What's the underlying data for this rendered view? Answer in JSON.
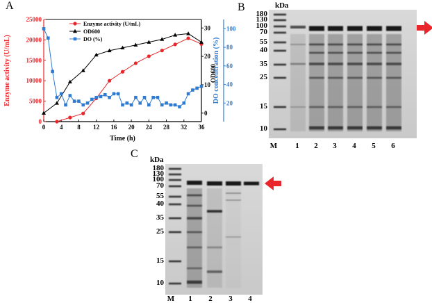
{
  "panels": {
    "a": {
      "letter": "A"
    },
    "b": {
      "letter": "B"
    },
    "c": {
      "letter": "C"
    }
  },
  "chart_data": {
    "type": "line",
    "xlabel": "Time (h)",
    "ylabel_left": "Enzyme activity (U/mL)",
    "ylabel_mid": "OD600",
    "ylabel_right": "DO concentration (%)",
    "xlim": [
      0,
      36
    ],
    "x_ticks": [
      0,
      4,
      8,
      12,
      16,
      20,
      24,
      28,
      32,
      36
    ],
    "ylim_left": [
      0,
      25000
    ],
    "left_ticks": [
      0,
      5000,
      10000,
      15000,
      20000,
      25000
    ],
    "ylim_mid": [
      -3,
      33
    ],
    "mid_ticks": [
      0,
      10,
      20,
      30
    ],
    "ylim_right": [
      0,
      110
    ],
    "right_ticks": [
      20,
      40,
      60,
      80,
      100
    ],
    "legend_position": "top-left",
    "colors": {
      "enzyme": "#e8262c",
      "od": "#000000",
      "do": "#2f7bd1"
    },
    "series": [
      {
        "name": "Enzyme activity (U/mL)",
        "axis": "left",
        "marker": "circle",
        "x": [
          3,
          6,
          9,
          12,
          15,
          18,
          21,
          24,
          27,
          30,
          33,
          36
        ],
        "y": [
          0,
          1000,
          2000,
          5700,
          10000,
          12200,
          14300,
          16000,
          17400,
          18900,
          20400,
          19000
        ]
      },
      {
        "name": "OD600",
        "axis": "mid",
        "marker": "triangle",
        "x": [
          0,
          3,
          6,
          9,
          12,
          15,
          18,
          21,
          24,
          27,
          30,
          33,
          36
        ],
        "y": [
          0,
          3.5,
          11,
          15,
          20.5,
          22,
          23,
          24,
          25,
          26,
          27.5,
          28,
          25
        ]
      },
      {
        "name": "DO (%)",
        "axis": "right",
        "marker": "square",
        "x": [
          0,
          1,
          2,
          3,
          4,
          5,
          6,
          7,
          8,
          9,
          10,
          11,
          12,
          13,
          14,
          15,
          16,
          17,
          18,
          19,
          20,
          21,
          22,
          23,
          24,
          25,
          26,
          27,
          28,
          29,
          30,
          31,
          32,
          33,
          34,
          35,
          36
        ],
        "y": [
          100,
          90,
          54,
          26,
          30,
          18,
          28,
          22,
          22,
          18,
          20,
          24,
          26,
          27,
          29,
          26,
          30,
          30,
          18,
          20,
          18,
          26,
          20,
          26,
          18,
          26,
          26,
          18,
          20,
          18,
          18,
          16,
          20,
          30,
          34,
          36,
          38
        ]
      }
    ]
  },
  "gel_b": {
    "unit": "kDa",
    "markers": [
      "180",
      "130",
      "100",
      "70",
      "55",
      "40",
      "35",
      "25",
      "15",
      "10"
    ],
    "lanes": [
      "M",
      "1",
      "2",
      "3",
      "4",
      "5",
      "6"
    ]
  },
  "gel_c": {
    "unit": "kDa",
    "markers": [
      "180",
      "130",
      "100",
      "70",
      "55",
      "40",
      "35",
      "25",
      "15",
      "10"
    ],
    "lanes": [
      "M",
      "1",
      "2",
      "3",
      "4"
    ]
  },
  "arrow_color": "#e8262c"
}
